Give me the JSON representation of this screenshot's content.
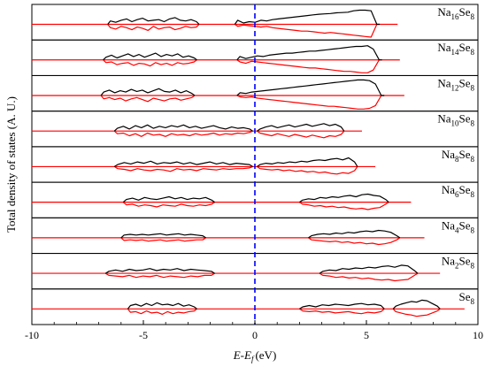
{
  "chart_data": {
    "type": "line",
    "title": "",
    "xlabel": "E-E_f (eV)",
    "xlabel_parts": {
      "main": "E-E",
      "sub": "f",
      "unit": "(eV)"
    },
    "ylabel": "Total density of states (A. U.)",
    "xlim": [
      -10,
      10
    ],
    "xticks": [
      "-10",
      "-5",
      "0",
      "5",
      "10"
    ],
    "x_tick_values": [
      -10,
      -5,
      0,
      5,
      10
    ],
    "grid": false,
    "fermi_level_x": 0,
    "colors": {
      "spin_up": "#000000",
      "spin_down": "#ff0000",
      "fermi": "#0000ff",
      "frame": "#000000"
    },
    "series_style": "upper curve black (spin up), lower curve red (spin down), red baseline",
    "panels": [
      {
        "label_main": "Na",
        "label_sub1": "16",
        "label_mid": "Se",
        "label_sub2": "8",
        "x_range": [
          -10,
          6.4
        ],
        "bands": [
          {
            "range": [
              -6.6,
              -2.5
            ],
            "up": [
              0.5,
              0.3,
              0.6,
              0.8,
              0.4,
              0.7,
              0.9,
              0.5,
              0.6,
              0.7,
              0.4,
              0.8,
              1.0,
              0.6,
              0.5,
              0.7,
              0.4
            ],
            "down": [
              0.5,
              0.7,
              0.3,
              0.5,
              0.8,
              0.4,
              0.6,
              0.9,
              0.3,
              0.7,
              0.5,
              0.4,
              0.8,
              0.6,
              0.3,
              0.5,
              0.4
            ]
          },
          {
            "range": [
              -0.9,
              5.6
            ],
            "up": [
              0.6,
              0.2,
              0.4,
              0.3,
              0.6,
              0.5,
              0.7,
              0.8,
              0.9,
              1.0,
              1.1,
              1.2,
              1.3,
              1.4,
              1.5,
              1.55,
              1.6,
              1.7,
              1.75,
              1.8,
              2.0,
              2.1,
              2.1,
              2.0,
              0.0
            ],
            "down": [
              0.3,
              0.1,
              0.2,
              0.3,
              0.4,
              0.3,
              0.5,
              0.6,
              0.7,
              0.8,
              0.9,
              1.0,
              1.0,
              1.1,
              1.2,
              1.3,
              1.2,
              1.3,
              1.4,
              1.5,
              1.6,
              1.7,
              1.8,
              1.9,
              0.0
            ]
          }
        ]
      },
      {
        "label_main": "Na",
        "label_sub1": "14",
        "label_mid": "Se",
        "label_sub2": "8",
        "x_range": [
          -10,
          6.5
        ],
        "bands": [
          {
            "range": [
              -6.8,
              -2.6
            ],
            "up": [
              0.4,
              0.7,
              0.3,
              0.6,
              0.9,
              0.5,
              0.8,
              0.4,
              0.7,
              1.0,
              0.5,
              0.8,
              0.6,
              0.9,
              0.4,
              0.6,
              0.3
            ],
            "down": [
              0.4,
              0.3,
              0.7,
              0.5,
              0.4,
              0.8,
              0.5,
              0.6,
              0.9,
              0.4,
              0.7,
              0.5,
              0.8,
              0.4,
              0.6,
              0.5,
              0.3
            ]
          },
          {
            "range": [
              -0.8,
              5.7
            ],
            "up": [
              0.5,
              0.2,
              0.4,
              0.6,
              0.5,
              0.7,
              0.8,
              0.9,
              1.0,
              1.0,
              1.1,
              1.2,
              1.3,
              1.3,
              1.4,
              1.5,
              1.6,
              1.7,
              1.8,
              1.9,
              2.0,
              2.0,
              2.1,
              1.6,
              0.0
            ],
            "down": [
              0.3,
              0.5,
              0.2,
              0.3,
              0.4,
              0.5,
              0.6,
              0.7,
              0.8,
              0.9,
              1.0,
              1.1,
              1.2,
              1.2,
              1.3,
              1.4,
              1.5,
              1.6,
              1.7,
              1.7,
              1.8,
              1.9,
              1.9,
              1.5,
              0.0
            ]
          }
        ]
      },
      {
        "label_main": "Na",
        "label_sub1": "12",
        "label_mid": "Se",
        "label_sub2": "8",
        "x_range": [
          -10,
          6.7
        ],
        "bands": [
          {
            "range": [
              -6.9,
              -2.7
            ],
            "up": [
              0.5,
              0.8,
              0.4,
              0.7,
              0.5,
              0.9,
              0.6,
              0.8,
              0.4,
              0.7,
              1.0,
              0.6,
              0.5,
              0.8,
              0.4,
              0.7,
              0.3
            ],
            "down": [
              0.5,
              0.3,
              0.6,
              0.4,
              0.8,
              0.5,
              0.3,
              0.6,
              0.9,
              0.4,
              0.6,
              0.8,
              0.5,
              0.4,
              0.7,
              0.5,
              0.3
            ]
          },
          {
            "range": [
              -0.8,
              5.8
            ],
            "up": [
              0.4,
              0.3,
              0.5,
              0.6,
              0.7,
              0.8,
              0.9,
              1.0,
              1.1,
              1.2,
              1.3,
              1.4,
              1.5,
              1.6,
              1.7,
              1.8,
              1.9,
              2.0,
              2.1,
              2.2,
              2.3,
              2.3,
              2.2,
              1.7,
              0.0
            ],
            "down": [
              0.2,
              0.3,
              0.2,
              0.4,
              0.5,
              0.6,
              0.7,
              0.8,
              0.9,
              1.0,
              1.1,
              1.2,
              1.3,
              1.4,
              1.5,
              1.6,
              1.6,
              1.7,
              1.8,
              1.9,
              2.0,
              2.0,
              1.9,
              1.5,
              0.0
            ]
          }
        ]
      },
      {
        "label_main": "Na",
        "label_sub1": "10",
        "label_mid": "Se",
        "label_sub2": "8",
        "x_range": [
          -10,
          4.8
        ],
        "bands": [
          {
            "range": [
              -6.3,
              -0.1
            ],
            "up": [
              0.4,
              0.7,
              0.3,
              0.8,
              0.5,
              0.9,
              0.4,
              0.7,
              0.5,
              0.8,
              0.6,
              0.9,
              0.5,
              0.7,
              0.4,
              0.6,
              0.8,
              0.5,
              0.3,
              0.6,
              0.4,
              0.5,
              0.3
            ],
            "down": [
              0.4,
              0.3,
              0.7,
              0.4,
              0.8,
              0.3,
              0.6,
              0.5,
              0.8,
              0.4,
              0.6,
              0.5,
              0.7,
              0.4,
              0.6,
              0.5,
              0.3,
              0.6,
              0.4,
              0.5,
              0.3,
              0.4,
              0.2
            ]
          },
          {
            "range": [
              0.1,
              4.0
            ],
            "up": [
              0.3,
              0.6,
              0.8,
              0.5,
              0.7,
              0.9,
              0.6,
              0.8,
              1.0,
              0.7,
              0.9,
              1.1,
              0.8,
              1.0,
              0.6
            ],
            "down": [
              0.3,
              0.5,
              0.7,
              0.4,
              0.6,
              0.8,
              0.5,
              0.7,
              0.9,
              0.6,
              0.8,
              1.0,
              0.7,
              0.8,
              0.5
            ]
          }
        ]
      },
      {
        "label_main": "Na",
        "label_sub1": "8",
        "label_mid": "Se",
        "label_sub2": "8",
        "x_range": [
          -10,
          5.4
        ],
        "bands": [
          {
            "range": [
              -6.3,
              -0.1
            ],
            "up": [
              0.3,
              0.6,
              0.4,
              0.7,
              0.5,
              0.8,
              0.4,
              0.6,
              0.5,
              0.7,
              0.4,
              0.6,
              0.3,
              0.5,
              0.7,
              0.4,
              0.6,
              0.3,
              0.5,
              0.4,
              0.3
            ],
            "down": [
              0.3,
              0.4,
              0.6,
              0.3,
              0.5,
              0.6,
              0.4,
              0.5,
              0.7,
              0.3,
              0.5,
              0.4,
              0.6,
              0.3,
              0.4,
              0.5,
              0.3,
              0.4,
              0.3,
              0.3,
              0.2
            ]
          },
          {
            "range": [
              0.1,
              4.6
            ],
            "up": [
              0.3,
              0.5,
              0.4,
              0.6,
              0.5,
              0.7,
              0.6,
              0.8,
              0.7,
              0.9,
              1.0,
              0.9,
              1.1,
              1.2,
              1.0,
              1.3,
              0.7
            ],
            "down": [
              0.3,
              0.4,
              0.5,
              0.4,
              0.6,
              0.5,
              0.7,
              0.6,
              0.8,
              0.7,
              0.9,
              0.8,
              1.0,
              1.1,
              0.9,
              1.0,
              0.6
            ]
          }
        ]
      },
      {
        "label_main": "Na",
        "label_sub1": "6",
        "label_mid": "Se",
        "label_sub2": "8",
        "x_range": [
          -10,
          7.0
        ],
        "bands": [
          {
            "range": [
              -5.9,
              -1.8
            ],
            "up": [
              0.4,
              0.6,
              0.3,
              0.7,
              0.5,
              0.4,
              0.6,
              0.8,
              0.5,
              0.7,
              0.4,
              0.6,
              0.5,
              0.7,
              0.3
            ],
            "down": [
              0.4,
              0.3,
              0.6,
              0.4,
              0.5,
              0.7,
              0.4,
              0.5,
              0.6,
              0.3,
              0.5,
              0.6,
              0.4,
              0.5,
              0.3
            ]
          },
          {
            "range": [
              2.0,
              6.0
            ],
            "up": [
              0.3,
              0.5,
              0.4,
              0.7,
              0.6,
              0.8,
              0.7,
              0.9,
              1.0,
              0.8,
              1.1,
              1.2,
              1.0,
              0.9,
              0.4
            ],
            "down": [
              0.3,
              0.4,
              0.6,
              0.5,
              0.7,
              0.6,
              0.8,
              0.7,
              0.9,
              1.0,
              0.9,
              1.1,
              0.9,
              0.8,
              0.3
            ]
          }
        ]
      },
      {
        "label_main": "Na",
        "label_sub1": "4",
        "label_mid": "Se",
        "label_sub2": "8",
        "x_range": [
          -10,
          7.6
        ],
        "bands": [
          {
            "range": [
              -6.0,
              -2.2
            ],
            "up": [
              0.4,
              0.5,
              0.4,
              0.5,
              0.4,
              0.5,
              0.6,
              0.4,
              0.5,
              0.6,
              0.4,
              0.5,
              0.4,
              0.3
            ],
            "down": [
              0.4,
              0.3,
              0.4,
              0.3,
              0.5,
              0.4,
              0.3,
              0.5,
              0.4,
              0.3,
              0.5,
              0.4,
              0.3,
              0.3
            ]
          },
          {
            "range": [
              2.4,
              6.5
            ],
            "up": [
              0.3,
              0.5,
              0.6,
              0.5,
              0.7,
              0.6,
              0.8,
              0.7,
              0.9,
              1.0,
              0.9,
              1.1,
              1.0,
              0.8,
              0.3
            ],
            "down": [
              0.3,
              0.4,
              0.5,
              0.6,
              0.5,
              0.7,
              0.6,
              0.8,
              0.7,
              0.9,
              0.8,
              1.0,
              0.9,
              0.7,
              0.3
            ]
          }
        ]
      },
      {
        "label_main": "Na",
        "label_sub1": "2",
        "label_mid": "Se",
        "label_sub2": "8",
        "x_range": [
          -10,
          8.3
        ],
        "bands": [
          {
            "range": [
              -6.7,
              -1.8
            ],
            "up": [
              0.3,
              0.5,
              0.3,
              0.6,
              0.4,
              0.5,
              0.7,
              0.4,
              0.6,
              0.5,
              0.7,
              0.4,
              0.6,
              0.5,
              0.4,
              0.3
            ],
            "down": [
              0.3,
              0.4,
              0.5,
              0.3,
              0.6,
              0.4,
              0.5,
              0.3,
              0.6,
              0.4,
              0.5,
              0.6,
              0.4,
              0.5,
              0.3,
              0.3
            ]
          },
          {
            "range": [
              2.9,
              7.3
            ],
            "up": [
              0.3,
              0.5,
              0.4,
              0.7,
              0.6,
              0.8,
              0.7,
              0.9,
              0.8,
              1.0,
              1.1,
              0.9,
              1.2,
              1.1,
              0.4
            ],
            "down": [
              0.3,
              0.4,
              0.6,
              0.5,
              0.7,
              0.6,
              0.8,
              0.7,
              0.9,
              1.0,
              0.9,
              1.1,
              1.0,
              0.9,
              0.3
            ]
          }
        ]
      },
      {
        "label_main": "Se",
        "label_sub1": "8",
        "label_mid": "",
        "label_sub2": "",
        "x_range": [
          -10,
          9.4
        ],
        "bands": [
          {
            "range": [
              -5.7,
              -2.6
            ],
            "up": [
              0.5,
              0.7,
              0.4,
              0.8,
              0.5,
              0.9,
              0.6,
              0.7,
              0.5,
              0.8,
              0.4,
              0.6,
              0.3
            ],
            "down": [
              0.5,
              0.4,
              0.7,
              0.3,
              0.6,
              0.5,
              0.8,
              0.4,
              0.7,
              0.5,
              0.6,
              0.4,
              0.3
            ]
          },
          {
            "range": [
              2.0,
              5.8
            ],
            "up": [
              0.3,
              0.5,
              0.3,
              0.6,
              0.5,
              0.7,
              0.6,
              0.5,
              0.7,
              0.8,
              0.6,
              0.7,
              0.5
            ],
            "down": [
              0.3,
              0.4,
              0.3,
              0.5,
              0.4,
              0.6,
              0.5,
              0.4,
              0.6,
              0.7,
              0.5,
              0.6,
              0.4
            ]
          },
          {
            "range": [
              6.2,
              8.3
            ],
            "up": [
              0.4,
              0.7,
              0.9,
              1.1,
              1.0,
              1.3,
              1.2,
              0.8,
              0.4
            ],
            "down": [
              0.4,
              0.6,
              0.8,
              0.9,
              1.1,
              1.0,
              0.9,
              0.6,
              0.3
            ]
          }
        ]
      }
    ]
  }
}
